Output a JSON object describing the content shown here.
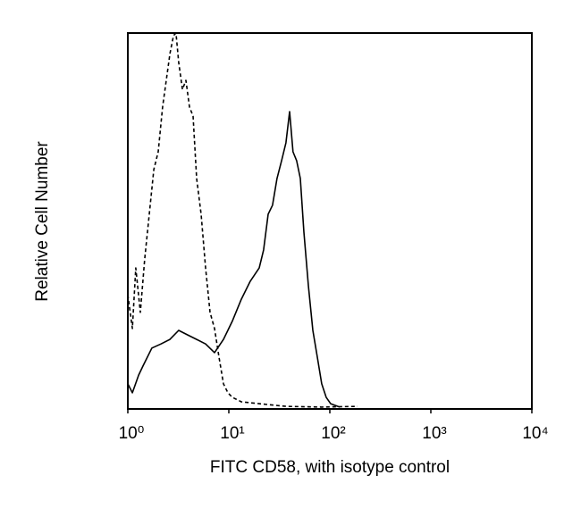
{
  "chart_data": {
    "type": "line",
    "xlabel": "FITC CD58, with isotype control",
    "ylabel": "Relative Cell Number",
    "xscale": "log",
    "xlim": [
      1,
      10000
    ],
    "xticks": [
      {
        "value": 1,
        "label": "10⁰"
      },
      {
        "value": 10,
        "label": "10¹"
      },
      {
        "value": 100,
        "label": "10²"
      },
      {
        "value": 1000,
        "label": "10³"
      },
      {
        "value": 10000,
        "label": "10⁴"
      }
    ],
    "ylim": [
      0,
      100
    ],
    "series": [
      {
        "color": "#000000",
        "dash": "4,3",
        "x": [
          1,
          1.11,
          1.2,
          1.33,
          1.47,
          1.63,
          1.81,
          2.0,
          2.21,
          2.4,
          2.61,
          2.83,
          3.0,
          3.19,
          3.47,
          3.76,
          4.08,
          4.43,
          4.8,
          5.32,
          5.89,
          6.52,
          7.22,
          8.0,
          8.85,
          9.8,
          10.8,
          13.3,
          20,
          36.8,
          83,
          188
        ],
        "values": [
          30.4,
          21.4,
          37.5,
          25.7,
          39.9,
          51.8,
          63.7,
          68.4,
          80.3,
          87.4,
          94.5,
          99.3,
          100,
          92.2,
          85.0,
          87.4,
          80.3,
          77.9,
          61.3,
          51.8,
          37.5,
          25.7,
          21.4,
          13.8,
          6.7,
          4.3,
          3.1,
          1.9,
          1.4,
          0.7,
          0.5,
          0.7
        ]
      },
      {
        "color": "#000000",
        "x": [
          1,
          1.11,
          1.28,
          1.41,
          1.73,
          2.13,
          2.61,
          3.19,
          3.92,
          4.8,
          5.89,
          7.22,
          8.85,
          10.8,
          13.3,
          16.3,
          20,
          22.1,
          24.5,
          27.1,
          30,
          33.3,
          36.8,
          40,
          43.2,
          47,
          51,
          55.4,
          61.3,
          67.9,
          75.2,
          83,
          92,
          101.9,
          125
        ],
        "values": [
          6.7,
          4.3,
          9.0,
          11.4,
          16.2,
          17.3,
          18.5,
          20.9,
          19.7,
          18.5,
          17.3,
          15.0,
          18.5,
          23.3,
          29.2,
          34.0,
          37.5,
          42.3,
          51.8,
          54.2,
          61.3,
          66.0,
          70.8,
          79.1,
          68.4,
          66.0,
          61.3,
          47.0,
          32.8,
          20.9,
          13.8,
          6.7,
          3.1,
          1.4,
          0.5
        ]
      }
    ]
  }
}
